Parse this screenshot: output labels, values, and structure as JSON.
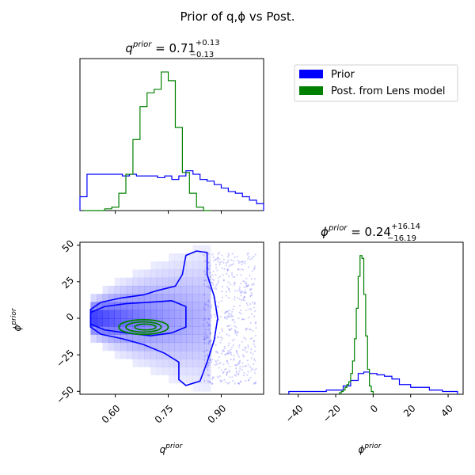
{
  "figure": {
    "title": "Prior of q,ϕ vs Post."
  },
  "panels": {
    "q_title": {
      "prefix": "q",
      "sup": "prior",
      "eq": " = 0.71",
      "plus": "+0.13",
      "minus": "−0.13"
    },
    "phi_title": {
      "prefix": "ϕ",
      "sup": "prior",
      "eq": " = 0.24",
      "plus": "+16.14",
      "minus": "−16.19"
    },
    "xlabel_q": {
      "base": "q",
      "sup": "prior"
    },
    "xlabel_phi": {
      "base": "ϕ",
      "sup": "prior"
    },
    "ylabel_phi": {
      "base": "ϕ",
      "sup": "prior"
    }
  },
  "legend": {
    "items": [
      {
        "label": "Prior",
        "color": "#0000ff"
      },
      {
        "label": "Post. from Lens model",
        "color": "#008000"
      }
    ]
  },
  "colors": {
    "prior": "#0000ff",
    "post": "#008000"
  },
  "chart_data": [
    {
      "type": "histogram",
      "panel": "q marginal",
      "xlim": [
        0.5,
        1.02
      ],
      "bin_width": 0.02,
      "x_ticks": [
        0.6,
        0.75,
        0.9
      ],
      "series": [
        {
          "name": "Prior",
          "color": "#0000ff",
          "bin_start": 0.5,
          "values": [
            0.08,
            0.21,
            0.21,
            0.21,
            0.21,
            0.21,
            0.2,
            0.21,
            0.2,
            0.2,
            0.2,
            0.19,
            0.2,
            0.18,
            0.2,
            0.23,
            0.21,
            0.18,
            0.17,
            0.15,
            0.13,
            0.11,
            0.1,
            0.08,
            0.06,
            0.04
          ]
        },
        {
          "name": "Post. from Lens model",
          "color": "#008000",
          "bin_start": 0.51,
          "values": [
            0,
            0,
            0,
            0.01,
            0.02,
            0.1,
            0.21,
            0.41,
            0.6,
            0.68,
            0.7,
            0.8,
            0.75,
            0.48,
            0.22,
            0.1,
            0.02,
            0
          ]
        }
      ]
    },
    {
      "type": "histogram",
      "panel": "phi marginal",
      "xlim": [
        -50,
        48
      ],
      "x_ticks": [
        -40,
        -20,
        0,
        20,
        40
      ],
      "series": [
        {
          "name": "Prior",
          "color": "#0000ff",
          "edges": [
            -45,
            -35,
            -25,
            -16,
            -12,
            -8,
            -5,
            -2,
            2,
            6,
            10,
            14,
            20,
            30,
            37,
            45
          ],
          "values": [
            0.02,
            0.02,
            0.03,
            0.06,
            0.1,
            0.15,
            0.16,
            0.15,
            0.14,
            0.13,
            0.11,
            0.07,
            0.05,
            0.03,
            0.02
          ]
        },
        {
          "name": "Post. from Lens model",
          "color": "#008000",
          "bin_start": -18,
          "bin_width": 1,
          "values": [
            0.01,
            0.02,
            0.03,
            0.05,
            0.07,
            0.09,
            0.15,
            0.24,
            0.4,
            0.62,
            0.85,
            1.0,
            0.98,
            0.72,
            0.42,
            0.18,
            0.06,
            0.02
          ]
        }
      ]
    },
    {
      "type": "scatter_contour_2d",
      "panel": "q vs phi",
      "xlim": [
        0.5,
        1.02
      ],
      "ylim": [
        -52,
        52
      ],
      "x_ticks": [
        0.6,
        0.75,
        0.9
      ],
      "y_ticks": [
        -50,
        -25,
        0,
        25,
        50
      ],
      "prior_scatter": {
        "x_range": [
          0.85,
          1.0
        ],
        "y_range": [
          -45,
          45
        ]
      },
      "prior_outer_contour": [
        [
          0.53,
          -6
        ],
        [
          0.53,
          6
        ],
        [
          0.56,
          11
        ],
        [
          0.62,
          14
        ],
        [
          0.68,
          16
        ],
        [
          0.72,
          19
        ],
        [
          0.77,
          22
        ],
        [
          0.79,
          30
        ],
        [
          0.8,
          43
        ],
        [
          0.83,
          46
        ],
        [
          0.86,
          45
        ],
        [
          0.86,
          30
        ],
        [
          0.88,
          15
        ],
        [
          0.89,
          0
        ],
        [
          0.88,
          -15
        ],
        [
          0.86,
          -30
        ],
        [
          0.84,
          -43
        ],
        [
          0.8,
          -46
        ],
        [
          0.78,
          -42
        ],
        [
          0.78,
          -30
        ],
        [
          0.74,
          -24
        ],
        [
          0.68,
          -18
        ],
        [
          0.62,
          -14
        ],
        [
          0.56,
          -11
        ]
      ],
      "prior_inner_contour": [
        [
          0.53,
          -4
        ],
        [
          0.53,
          4
        ],
        [
          0.57,
          8
        ],
        [
          0.63,
          10
        ],
        [
          0.7,
          11
        ],
        [
          0.76,
          12
        ],
        [
          0.8,
          8
        ],
        [
          0.8,
          -6
        ],
        [
          0.76,
          -10
        ],
        [
          0.7,
          -12
        ],
        [
          0.63,
          -10
        ],
        [
          0.57,
          -8
        ]
      ],
      "post_contours": [
        {
          "center": [
            0.68,
            -6
          ],
          "rx": 0.07,
          "ry": 5
        },
        {
          "center": [
            0.68,
            -6
          ],
          "rx": 0.05,
          "ry": 3.5
        },
        {
          "center": [
            0.685,
            -6
          ],
          "rx": 0.03,
          "ry": 2
        }
      ]
    }
  ]
}
